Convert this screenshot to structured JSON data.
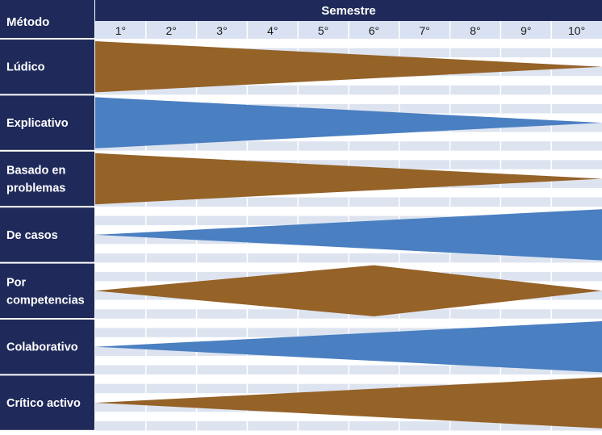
{
  "header": {
    "method_label": "Método",
    "semester_label": "Semestre"
  },
  "semesters": [
    "1°",
    "2°",
    "3°",
    "4°",
    "5°",
    "6°",
    "7°",
    "8°",
    "9°",
    "10°"
  ],
  "colors": {
    "navy": "#1f2a5a",
    "header_strip": "#1f2a5a",
    "semester_row": "#d9e1f2",
    "grid_light": "#dde4f0",
    "grid_white": "#ffffff",
    "brown": "#956228",
    "blue": "#4a7fc1"
  },
  "methods": [
    {
      "name_lines": [
        "Lúdico"
      ],
      "color": "brown",
      "profile": [
        0,
        1,
        10,
        0
      ]
    },
    {
      "name_lines": [
        "Explicativo"
      ],
      "color": "blue",
      "profile": [
        0,
        1,
        10,
        0
      ]
    },
    {
      "name_lines": [
        "Basado en",
        "problemas"
      ],
      "color": "brown",
      "profile": [
        0,
        1,
        10,
        0
      ]
    },
    {
      "name_lines": [
        "De casos"
      ],
      "color": "blue",
      "profile": [
        0,
        0,
        10,
        1
      ]
    },
    {
      "name_lines": [
        "Por",
        "competencias"
      ],
      "color": "brown",
      "profile": [
        0,
        0,
        5.5,
        1,
        10,
        0
      ]
    },
    {
      "name_lines": [
        "Colaborativo"
      ],
      "color": "blue",
      "profile": [
        0,
        0,
        10,
        1
      ]
    },
    {
      "name_lines": [
        "Crítico activo"
      ],
      "color": "brown",
      "profile": [
        0,
        0,
        10,
        1
      ]
    }
  ]
}
